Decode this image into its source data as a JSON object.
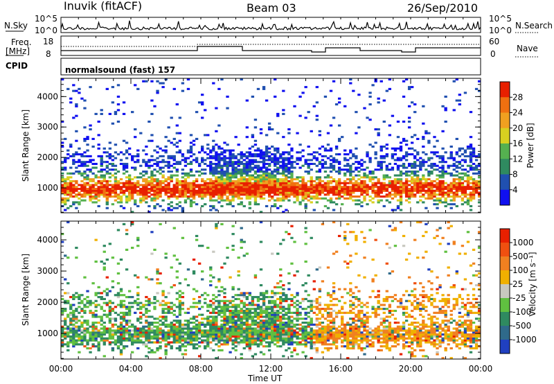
{
  "header": {
    "station": "Inuvik (fitACF)",
    "beam": "Beam 03",
    "date": "26/Sep/2010"
  },
  "summary": {
    "nsky_label": "N.Sky",
    "nsky_ticks": [
      "10^5",
      "10^0"
    ],
    "nsearch_label": "N.Search",
    "nsearch_ticks": [
      "10^5",
      "10^0"
    ],
    "freq_label_1": "Freq.",
    "freq_label_2": "[MHz]",
    "freq_ticks": [
      "18",
      "8"
    ],
    "nave_label": "Nave",
    "nave_ticks": [
      "60",
      "0"
    ],
    "cpid_label": "CPID",
    "cpid_value": "normalsound (fast) 157"
  },
  "chart_data": [
    {
      "type": "heatmap",
      "name": "power",
      "ylabel": "Slant Range [km]",
      "xlabel": "Time UT",
      "xlim": [
        0,
        24
      ],
      "ylim": [
        180,
        4600
      ],
      "x_ticks": [
        "00:00",
        "04:00",
        "08:00",
        "12:00",
        "16:00",
        "20:00",
        "00:00"
      ],
      "y_ticks": [
        1000,
        2000,
        3000,
        4000
      ],
      "colorbar": {
        "label": "Power [dB]",
        "ticks": [
          4,
          8,
          12,
          16,
          20,
          24,
          28
        ],
        "range": [
          0,
          32
        ],
        "colors": [
          "#1010f0",
          "#2050b0",
          "#2f8a60",
          "#55b050",
          "#d8d020",
          "#f0a020",
          "#f07010",
          "#e82000"
        ]
      }
    },
    {
      "type": "heatmap",
      "name": "velocity",
      "ylabel": "Slant Range [km]",
      "xlabel": "Time UT",
      "xlim": [
        0,
        24
      ],
      "ylim": [
        180,
        4600
      ],
      "x_ticks": [
        "00:00",
        "04:00",
        "08:00",
        "12:00",
        "16:00",
        "20:00",
        "00:00"
      ],
      "y_ticks": [
        1000,
        2000,
        3000,
        4000
      ],
      "colorbar": {
        "label": "Velocity [m s⁻¹]",
        "ticks": [
          "1000",
          "500",
          "100",
          "25",
          "-25",
          "-100",
          "-500",
          "-1000"
        ],
        "colors": [
          "#2040c0",
          "#2f6a8a",
          "#2f8a60",
          "#60c040",
          "#c8c8c0",
          "#f0b000",
          "#f08020",
          "#f05010",
          "#e82000"
        ]
      }
    }
  ]
}
